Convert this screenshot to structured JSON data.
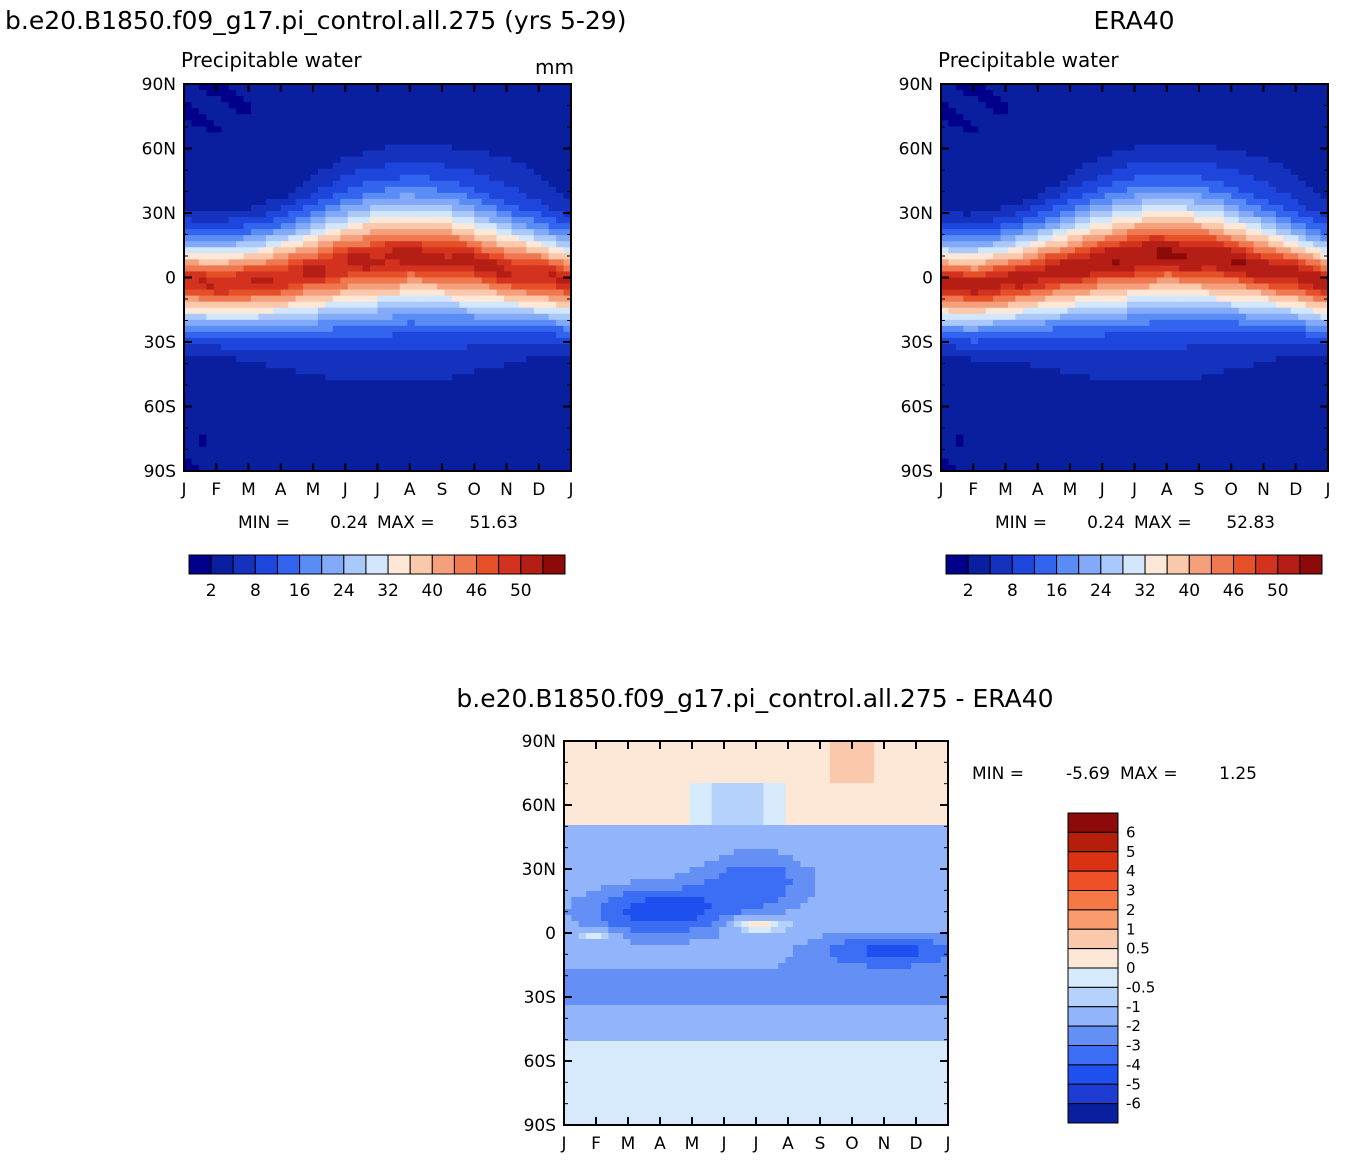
{
  "colors": {
    "scale": [
      "#00008a",
      "#0a1ea0",
      "#1432be",
      "#1e46dc",
      "#3264f0",
      "#5a8cf5",
      "#82aaf8",
      "#aac8fa",
      "#d2e6fc",
      "#fde8d8",
      "#fac8aa",
      "#f5a07d",
      "#f07850",
      "#e65028",
      "#d2321e",
      "#b41e14",
      "#8c0a0a"
    ],
    "diff_scale": [
      "#00008a",
      "#0a1ea0",
      "#1e3cd2",
      "#1e50f0",
      "#3c6ef5",
      "#6490f5",
      "#91b4fa",
      "#b4d2fc",
      "#d7e9fc",
      "#fde8d8",
      "#fac8aa",
      "#fa9b6e",
      "#f57846",
      "#f05028",
      "#dc3214",
      "#b41e0a",
      "#8c0a0a"
    ]
  },
  "chart_data": [
    {
      "type": "heatmap",
      "title": "b.e20.B1850.f09_g17.pi_control.all.275 (yrs 5-29)",
      "subtitle": "Precipitable water",
      "units": "mm",
      "x_ticks": [
        "J",
        "F",
        "M",
        "A",
        "M",
        "J",
        "J",
        "A",
        "S",
        "O",
        "N",
        "D",
        "J"
      ],
      "y_ticks": [
        "90N",
        "60N",
        "30N",
        "0",
        "30S",
        "60S",
        "90S"
      ],
      "ylim": [
        -90,
        90
      ],
      "min_label": "MIN =",
      "min_value": "0.24",
      "max_label": "MAX =",
      "max_value": "51.63",
      "colorbar_labels": [
        "2",
        "8",
        "16",
        "24",
        "32",
        "40",
        "46",
        "50"
      ],
      "levels": [
        2,
        5,
        8,
        12,
        16,
        20,
        24,
        28,
        32,
        36,
        40,
        43,
        46,
        48,
        50,
        52
      ],
      "itcz_lat": [
        -2,
        -3,
        -2,
        0,
        3,
        6,
        8,
        9,
        8,
        6,
        3,
        1,
        -2
      ],
      "peak": 51.63
    },
    {
      "type": "heatmap",
      "title": "ERA40",
      "subtitle": "Precipitable water",
      "x_ticks": [
        "J",
        "F",
        "M",
        "A",
        "M",
        "J",
        "J",
        "A",
        "S",
        "O",
        "N",
        "D",
        "J"
      ],
      "y_ticks": [
        "90N",
        "60N",
        "30N",
        "0",
        "30S",
        "60S",
        "90S"
      ],
      "ylim": [
        -90,
        90
      ],
      "min_label": "MIN =",
      "min_value": "0.24",
      "max_label": "MAX =",
      "max_value": "52.83",
      "colorbar_labels": [
        "2",
        "8",
        "16",
        "24",
        "32",
        "40",
        "46",
        "50"
      ],
      "levels": [
        2,
        5,
        8,
        12,
        16,
        20,
        24,
        28,
        32,
        36,
        40,
        43,
        46,
        48,
        50,
        52
      ],
      "itcz_lat": [
        -3,
        -4,
        -2,
        1,
        4,
        7,
        9,
        10,
        9,
        7,
        4,
        1,
        -3
      ],
      "peak": 52.83
    },
    {
      "type": "heatmap",
      "title": "b.e20.B1850.f09_g17.pi_control.all.275 - ERA40",
      "x_ticks": [
        "J",
        "F",
        "M",
        "A",
        "M",
        "J",
        "J",
        "A",
        "S",
        "O",
        "N",
        "D",
        "J"
      ],
      "y_ticks": [
        "90N",
        "60N",
        "30N",
        "0",
        "30S",
        "60S",
        "90S"
      ],
      "ylim": [
        -90,
        90
      ],
      "min_label": "MIN =",
      "min_value": "-5.69",
      "max_label": "MAX =",
      "max_value": "1.25",
      "colorbar_labels": [
        "6",
        "5",
        "4",
        "3",
        "2",
        "1",
        "0.5",
        "0",
        "-0.5",
        "-1",
        "-2",
        "-3",
        "-4",
        "-5",
        "-6"
      ],
      "levels": [
        -6,
        -5,
        -4,
        -3,
        -2,
        -1,
        -0.5,
        0,
        0.5,
        1,
        2,
        3,
        4,
        5,
        6
      ]
    }
  ]
}
